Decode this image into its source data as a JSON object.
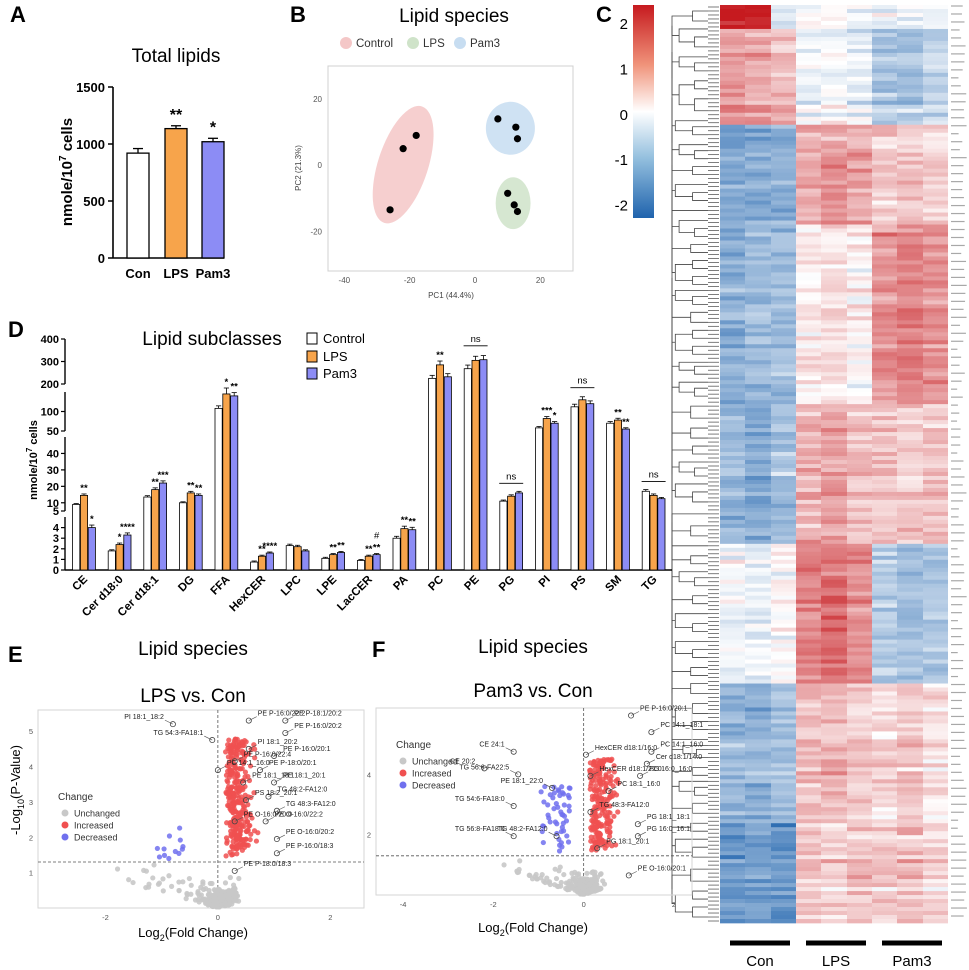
{
  "panels": {
    "a": "A",
    "b": "B",
    "c": "C",
    "d": "D",
    "e": "E",
    "f": "F"
  },
  "colors": {
    "control": "#ffffff",
    "lps": "#f7a44b",
    "pam3": "#8c8cf5",
    "ctrl_ellipse": "#f4c7c7",
    "lps_ellipse": "#cfe3c9",
    "pam3_ellipse": "#c7ddf1",
    "increased": "#f05050",
    "decreased": "#7070ee",
    "unchanged": "#c8c8c8",
    "heat_low": "#1f63ad",
    "heat_mid": "#ffffff",
    "heat_high": "#c61a1f"
  },
  "chart_data": [
    {
      "id": "A",
      "type": "bar",
      "title": "Total lipids",
      "ylabel": "nmole/10^7 cells",
      "ylabel_main": "nmole/10",
      "ylabel_sup": "7",
      "ylabel_tail": " cells",
      "categories": [
        "Con",
        "LPS",
        "Pam3"
      ],
      "values": [
        920,
        1135,
        1020
      ],
      "errors": [
        40,
        25,
        30
      ],
      "significance": [
        "",
        "**",
        "*"
      ],
      "ylim": [
        0,
        1500
      ],
      "yticks": [
        "0",
        "500",
        "1000",
        "1500"
      ],
      "ytick_values": [
        0,
        500,
        1000,
        1500
      ]
    },
    {
      "id": "B",
      "type": "scatter",
      "title": "Lipid species",
      "xlabel": "PC1 (44.4%)",
      "ylabel": "PC2 (21.3%)",
      "xlim": [
        -45,
        30
      ],
      "ylim": [
        -32,
        30
      ],
      "xticks": [
        "-40",
        "-20",
        "0",
        "20"
      ],
      "xtick_values": [
        -40,
        -20,
        0,
        20
      ],
      "yticks": [
        "-20",
        "0",
        "20"
      ],
      "ytick_values": [
        -20,
        0,
        20
      ],
      "legend": [
        "Control",
        "LPS",
        "Pam3"
      ],
      "series": [
        {
          "name": "Control",
          "points": [
            [
              -26,
              -13.5
            ],
            [
              -22,
              5
            ],
            [
              -18,
              9
            ]
          ]
        },
        {
          "name": "LPS",
          "points": [
            [
              10,
              -8.5
            ],
            [
              12,
              -12
            ],
            [
              13,
              -14
            ]
          ]
        },
        {
          "name": "Pam3",
          "points": [
            [
              7,
              14
            ],
            [
              12.5,
              11.5
            ],
            [
              13,
              8
            ]
          ]
        }
      ]
    },
    {
      "id": "C",
      "type": "heatmap",
      "column_groups": [
        "Con",
        "LPS",
        "Pam3"
      ],
      "colorbar_ticks": [
        "2",
        "1",
        "0",
        "-1",
        "-2"
      ],
      "colorbar_tick_values": [
        2,
        1,
        0,
        -1,
        -2
      ],
      "range": [
        -2.3,
        2.4
      ]
    },
    {
      "id": "D",
      "type": "bar",
      "title": "Lipid subclasses",
      "ylabel": "nmole/10^7 cells",
      "ylabel_main": "nmole/10",
      "ylabel_sup": "7",
      "ylabel_tail": " cells",
      "legend": [
        "Control",
        "LPS",
        "Pam3"
      ],
      "categories": [
        "CE",
        "Cer d18:0",
        "Cer d18:1",
        "DG",
        "FFA",
        "HexCER",
        "LPC",
        "LPE",
        "LacCER",
        "PA",
        "PC",
        "PE",
        "PG",
        "PI",
        "PS",
        "SM",
        "TG"
      ],
      "series": [
        {
          "name": "Control",
          "values": [
            9,
            1.8,
            13.5,
            10,
            108,
            0.75,
            2.3,
            1.1,
            0.9,
            3.0,
            225,
            268,
            11,
            58,
            112,
            70,
            17
          ]
        },
        {
          "name": "LPS",
          "values": [
            14.5,
            2.4,
            18,
            16,
            145,
            1.3,
            2.2,
            1.45,
            1.3,
            3.9,
            285,
            305,
            14,
            82,
            130,
            78,
            14.5
          ]
        },
        {
          "name": "Pam3",
          "values": [
            4,
            3.3,
            22,
            14.5,
            140,
            1.6,
            1.8,
            1.65,
            1.45,
            3.8,
            232,
            308,
            16,
            70,
            120,
            55,
            12.5
          ]
        }
      ],
      "significance": [
        [
          "",
          "**",
          "*"
        ],
        [
          "",
          "*",
          "****"
        ],
        [
          "",
          "**",
          "***"
        ],
        [
          "",
          "**",
          "**"
        ],
        [
          "",
          "*",
          "**"
        ],
        [
          "",
          "**",
          "****"
        ],
        [
          "",
          "",
          ""
        ],
        [
          "",
          "**",
          "**"
        ],
        [
          "",
          "**",
          "**"
        ],
        [
          "",
          "**",
          "**"
        ],
        [
          "",
          "**",
          ""
        ],
        [
          "",
          "",
          ""
        ],
        [
          "",
          "",
          ""
        ],
        [
          "",
          "***",
          "*"
        ],
        [
          "",
          "",
          ""
        ],
        [
          "",
          "**",
          "**"
        ],
        [
          "",
          "",
          ""
        ]
      ],
      "hash_marks": [
        {
          "category": "LacCER",
          "text": "#"
        }
      ],
      "ns_categories": [
        "PE",
        "PG",
        "PS",
        "TG"
      ],
      "ns_label": "ns",
      "segments": [
        {
          "ylim": [
            200,
            400
          ],
          "yticks": [
            "200",
            "300",
            "400"
          ]
        },
        {
          "ylim": [
            50,
            150
          ],
          "yticks": [
            "100",
            "50"
          ]
        },
        {
          "ylim": [
            5,
            50
          ],
          "yticks": [
            "40",
            "30",
            "20",
            "10"
          ]
        },
        {
          "ylim": [
            0,
            5
          ],
          "yticks": [
            "5",
            "4",
            "3",
            "2",
            "1",
            "0"
          ]
        }
      ]
    },
    {
      "id": "E",
      "type": "scatter",
      "title": "Lipid species",
      "subtitle": "LPS vs. Con",
      "xlabel": "Log2(Fold Change)",
      "xlabel_main": "Log",
      "xlabel_sub": "2",
      "xlabel_tail": "(Fold Change)",
      "ylabel": "-Log10(P-Value)",
      "ylabel_main": "-Log",
      "ylabel_sub": "10",
      "ylabel_tail": "(P-Value)",
      "xlim": [
        -3.2,
        2.6
      ],
      "ylim": [
        0,
        5.6
      ],
      "xticks": [
        "-2",
        "0",
        "2"
      ],
      "xtick_values": [
        -2,
        0,
        2
      ],
      "yticks": [
        "1",
        "2",
        "3",
        "4",
        "5"
      ],
      "ytick_values": [
        1,
        2,
        3,
        4,
        5
      ],
      "threshold_y": 1.3,
      "legend_title": "Change",
      "legend": [
        "Unchanged",
        "Increased",
        "Decreased"
      ],
      "labels": [
        {
          "text": "PE P-16:0/22:2",
          "x": 0.55,
          "y": 5.3
        },
        {
          "text": "PE P-18:1/20:2",
          "x": 1.2,
          "y": 5.3
        },
        {
          "text": "PI 18:1_18:2",
          "x": -0.8,
          "y": 5.2
        },
        {
          "text": "PE P-16:0/20:2",
          "x": 1.2,
          "y": 4.95
        },
        {
          "text": "TG 54:3-FA18:1",
          "x": -0.1,
          "y": 4.75
        },
        {
          "text": "PI 18:1_20:2",
          "x": 0.55,
          "y": 4.5
        },
        {
          "text": "PE P-16:0/20:1",
          "x": 1.0,
          "y": 4.3
        },
        {
          "text": "PE P-16:0/22:4",
          "x": 0.3,
          "y": 4.15
        },
        {
          "text": "PC 14:1_16:0",
          "x": 0.0,
          "y": 3.9
        },
        {
          "text": "PE P-18:0/20:1",
          "x": 0.75,
          "y": 3.9
        },
        {
          "text": "PE 18:1_18:1",
          "x": 0.45,
          "y": 3.55
        },
        {
          "text": "PE 18:1_20:1",
          "x": 1.0,
          "y": 3.55
        },
        {
          "text": "TG 48:2-FA12:0",
          "x": 0.9,
          "y": 3.15
        },
        {
          "text": "PS 18:2_20:1",
          "x": 0.5,
          "y": 3.05
        },
        {
          "text": "TG 48:3-FA12:0",
          "x": 1.05,
          "y": 2.75
        },
        {
          "text": "PE O-16:0/22:2",
          "x": 0.85,
          "y": 2.45
        },
        {
          "text": "PE O-16:0/20:0",
          "x": 0.3,
          "y": 2.45
        },
        {
          "text": "PE O-16:0/20:2",
          "x": 1.05,
          "y": 1.95
        },
        {
          "text": "PE P-16:0/18:3",
          "x": 1.05,
          "y": 1.55
        },
        {
          "text": "PE P-18:0/18:3",
          "x": 0.3,
          "y": 1.05
        }
      ]
    },
    {
      "id": "F",
      "type": "scatter",
      "title": "Lipid species",
      "subtitle": "Pam3 vs. Con",
      "xlabel": "Log2(Fold Change)",
      "xlabel_main": "Log",
      "xlabel_sub": "2",
      "xlabel_tail": "(Fold Change)",
      "xlim": [
        -4.6,
        2.4
      ],
      "ylim": [
        0,
        6.2
      ],
      "xticks": [
        "-4",
        "-2",
        "0",
        "2"
      ],
      "xtick_values": [
        -4,
        -2,
        0,
        2
      ],
      "yticks": [
        "2",
        "4"
      ],
      "ytick_values": [
        2,
        4
      ],
      "threshold_y": 1.3,
      "legend_title": "Change",
      "legend": [
        "Unchanged",
        "Increased",
        "Decreased"
      ],
      "labels": [
        {
          "text": "PE P-16:0/20:1",
          "x": 1.05,
          "y": 5.95
        },
        {
          "text": "PC 14:1_18:1",
          "x": 1.5,
          "y": 5.4
        },
        {
          "text": "CE 24:1",
          "x": -1.55,
          "y": 4.75
        },
        {
          "text": "PC 14:1_16:0",
          "x": 1.5,
          "y": 4.75
        },
        {
          "text": "HexCER d18:1/16:0",
          "x": 0.05,
          "y": 4.65
        },
        {
          "text": "Cer d18:1/14:0",
          "x": 1.4,
          "y": 4.35
        },
        {
          "text": "CE 20:2",
          "x": -2.2,
          "y": 4.2
        },
        {
          "text": "TG 56:6-FA22:5",
          "x": -1.45,
          "y": 4.0
        },
        {
          "text": "HexCER d18:1/22:0",
          "x": 0.15,
          "y": 3.95
        },
        {
          "text": "PG 16:0_16:0",
          "x": 1.25,
          "y": 3.95
        },
        {
          "text": "PE 18:1_22:0",
          "x": -0.7,
          "y": 3.55
        },
        {
          "text": "PC 18:1_16:0",
          "x": 0.55,
          "y": 3.45
        },
        {
          "text": "TG 54:6-FA18:0",
          "x": -1.55,
          "y": 2.95
        },
        {
          "text": "TG 48:3-FA12:0",
          "x": 0.15,
          "y": 2.75
        },
        {
          "text": "PG 18:1_18:1",
          "x": 1.2,
          "y": 2.35
        },
        {
          "text": "TG 56:8-FA18:0",
          "x": -1.55,
          "y": 1.95
        },
        {
          "text": "TG 48:2-FA12:0",
          "x": -0.6,
          "y": 1.95
        },
        {
          "text": "PG 16:0_16:1",
          "x": 1.2,
          "y": 1.95
        },
        {
          "text": "PG 18:1_20:1",
          "x": 0.3,
          "y": 1.55
        },
        {
          "text": "PE O-16:0/20:1",
          "x": 1.0,
          "y": 0.65
        }
      ]
    }
  ]
}
